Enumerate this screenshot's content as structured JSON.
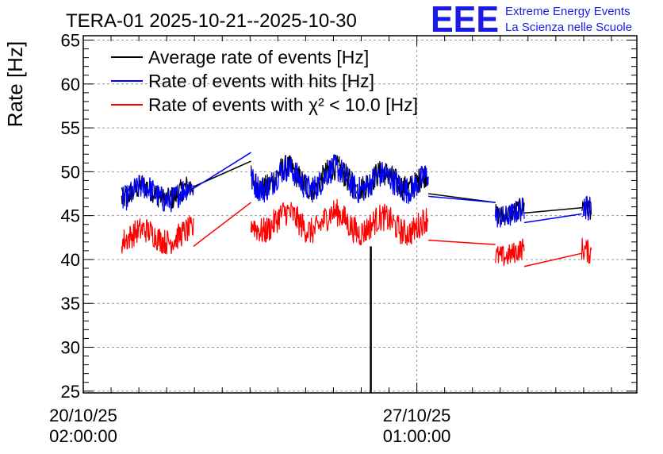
{
  "chart_data": {
    "type": "line",
    "title": "TERA-01 2025-10-21--2025-10-30",
    "ylabel": "Rate [Hz]",
    "xlabel": "",
    "ylim": [
      24.8,
      65.5
    ],
    "xlim_days": [
      0,
      11.55
    ],
    "yticks": [
      25,
      30,
      35,
      40,
      45,
      50,
      55,
      60,
      65
    ],
    "xticks": [
      {
        "day": 0,
        "line1": "20/10/25",
        "line2": "02:00:00"
      },
      {
        "day": 6.96,
        "line1": "27/10/25",
        "line2": "01:00:00"
      }
    ],
    "grid": true,
    "logo": {
      "text": "EEE",
      "line1": "Extreme Energy Events",
      "line2": "La Scienza nelle Scuole",
      "color": "#1a1ae6"
    },
    "series": [
      {
        "name": "Average rate of events [Hz]",
        "color": "#000000",
        "segments": [
          {
            "x0": 0.8,
            "x1": 2.3,
            "base": 47.6,
            "noise": 1.4,
            "amp": 0.8
          },
          {
            "x0": 3.5,
            "x1": 5.7,
            "base": 49.3,
            "noise": 1.5,
            "amp": 1.2
          },
          {
            "x0": 5.7,
            "x1": 7.2,
            "base": 49.0,
            "noise": 1.5,
            "amp": 0.9
          },
          {
            "x0": 8.6,
            "x1": 9.2,
            "base": 45.5,
            "noise": 1.2,
            "amp": 0.5
          },
          {
            "x0": 10.4,
            "x1": 10.6,
            "base": 46.0,
            "noise": 1.3,
            "amp": 0.4
          }
        ],
        "connectors": [
          [
            2.3,
            48.3,
            3.5,
            51.2
          ],
          [
            7.2,
            47.5,
            8.6,
            46.5
          ],
          [
            9.2,
            45.3,
            10.4,
            45.9
          ]
        ]
      },
      {
        "name": "Rate of events with hits [Hz]",
        "color": "#0000ff",
        "segments": [
          {
            "x0": 0.8,
            "x1": 2.3,
            "base": 47.5,
            "noise": 1.5,
            "amp": 0.8
          },
          {
            "x0": 3.5,
            "x1": 5.7,
            "base": 49.2,
            "noise": 1.6,
            "amp": 1.2
          },
          {
            "x0": 5.7,
            "x1": 7.2,
            "base": 48.8,
            "noise": 1.6,
            "amp": 0.9
          },
          {
            "x0": 8.6,
            "x1": 9.2,
            "base": 45.3,
            "noise": 1.4,
            "amp": 0.5
          },
          {
            "x0": 10.4,
            "x1": 10.6,
            "base": 46.0,
            "noise": 1.5,
            "amp": 0.4
          }
        ],
        "connectors": [
          [
            2.3,
            48.1,
            3.5,
            52.2
          ],
          [
            7.2,
            47.2,
            8.6,
            46.5
          ],
          [
            9.2,
            44.2,
            10.4,
            45.2
          ]
        ]
      },
      {
        "name": "Rate of events with χ² < 10.0 [Hz]",
        "color": "#ff0000",
        "segments": [
          {
            "x0": 0.8,
            "x1": 2.3,
            "base": 42.7,
            "noise": 1.5,
            "amp": 0.7
          },
          {
            "x0": 3.5,
            "x1": 5.7,
            "base": 44.3,
            "noise": 1.6,
            "amp": 1.1
          },
          {
            "x0": 5.7,
            "x1": 7.2,
            "base": 43.9,
            "noise": 1.6,
            "amp": 0.9
          },
          {
            "x0": 8.6,
            "x1": 9.2,
            "base": 40.8,
            "noise": 1.3,
            "amp": 0.5
          },
          {
            "x0": 10.4,
            "x1": 10.6,
            "base": 41.0,
            "noise": 1.4,
            "amp": 0.4
          }
        ],
        "connectors": [
          [
            2.3,
            41.5,
            3.5,
            46.5
          ],
          [
            7.2,
            42.2,
            8.6,
            41.7
          ],
          [
            9.2,
            39.2,
            10.4,
            40.7
          ]
        ]
      }
    ],
    "dropout": {
      "day": 6.0,
      "from": 41.5,
      "to": 24.8
    }
  }
}
